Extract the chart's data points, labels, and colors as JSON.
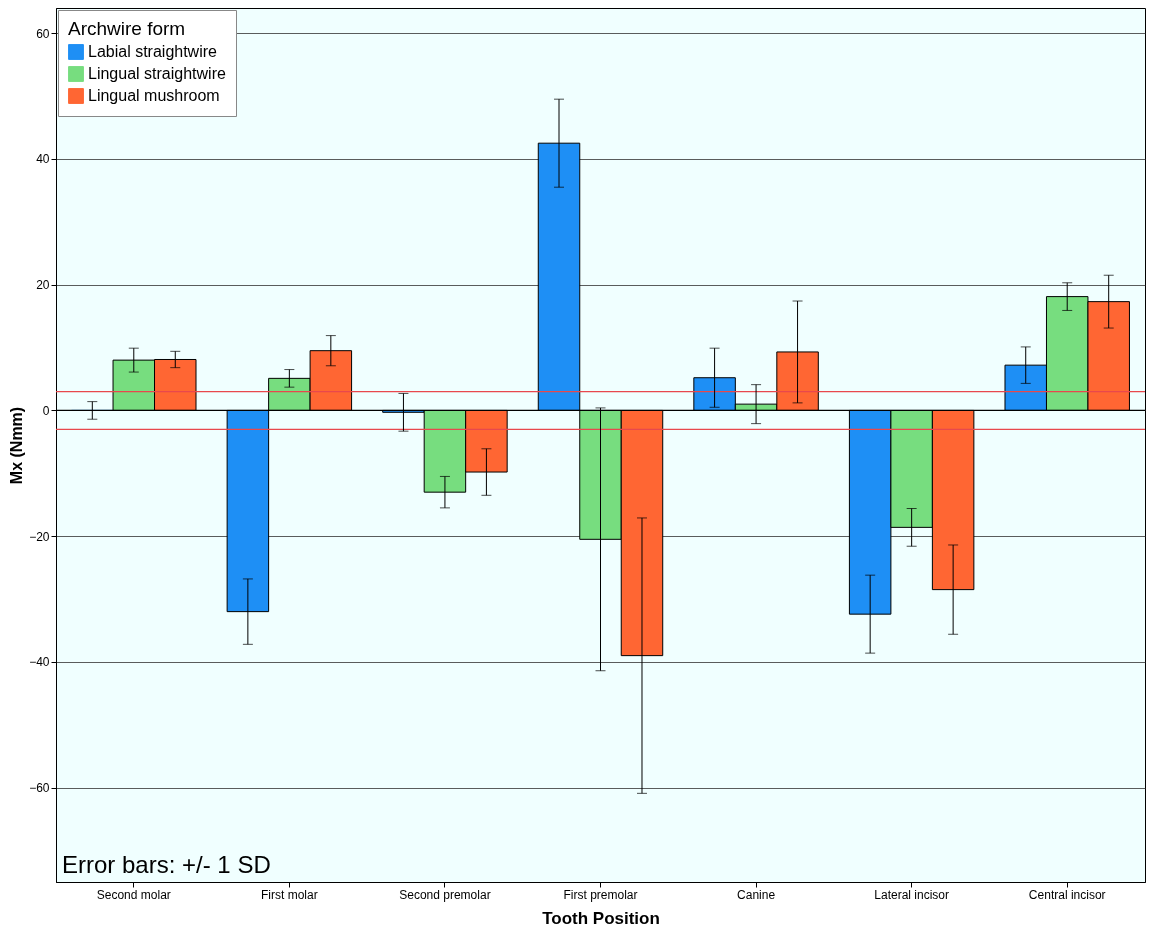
{
  "chart_data": {
    "type": "bar",
    "xlabel": "Tooth Position",
    "ylabel": "Mx (Nmm)",
    "legend_title": "Archwire form",
    "legend": "top left",
    "grid": "y",
    "categories": [
      "Second molar",
      "First molar",
      "Second premolar",
      "First premolar",
      "Canine",
      "Lateral incisor",
      "Central incisor"
    ],
    "ylim": [
      -75,
      64
    ],
    "yticks": [
      -60,
      -40,
      -20,
      0,
      20,
      40,
      60
    ],
    "series": [
      {
        "name": "Labial straightwire",
        "color": "#1e8ff5",
        "values": [
          0,
          -32,
          -0.3,
          42.5,
          5.2,
          -32.4,
          7.2
        ],
        "errors": [
          1.4,
          5.2,
          3,
          7,
          4.7,
          6.2,
          2.9
        ]
      },
      {
        "name": "Lingual straightwire",
        "color": "#77dd7f",
        "values": [
          8,
          5.1,
          -13,
          -20.5,
          1,
          -18.6,
          18.1
        ],
        "errors": [
          1.9,
          1.4,
          2.5,
          20.9,
          3.1,
          3,
          2.2
        ]
      },
      {
        "name": "Lingual mushroom",
        "color": "#ff6633",
        "values": [
          8.1,
          9.5,
          -9.8,
          -39,
          9.3,
          -28.5,
          17.3
        ],
        "errors": [
          1.3,
          2.4,
          3.7,
          21.9,
          8.1,
          7.1,
          4.2
        ]
      }
    ],
    "ref_lines": [
      {
        "axis": "y",
        "value": 3,
        "color": "#e8484d"
      },
      {
        "axis": "y",
        "value": -3,
        "color": "#e8484d"
      },
      {
        "axis": "y",
        "value": 0,
        "color": "#000000"
      }
    ],
    "annotations": [
      "Error bars: +/- 1 SD"
    ]
  }
}
